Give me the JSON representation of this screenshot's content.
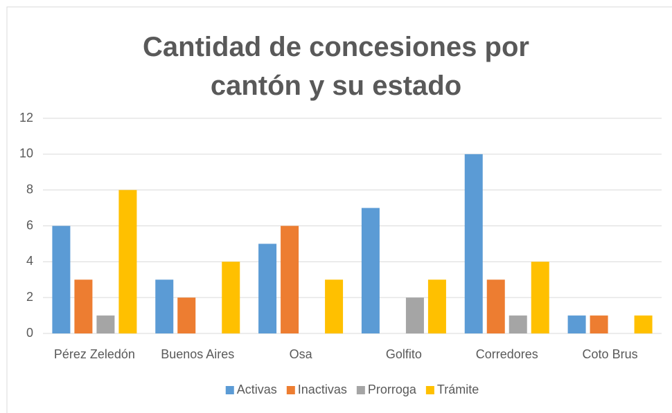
{
  "chart_data": {
    "type": "bar",
    "title": "Cantidad de concesiones por cantón y su estado",
    "categories": [
      "Pérez Zeledón",
      "Buenos Aires",
      "Osa",
      "Golfito",
      "Corredores",
      "Coto Brus"
    ],
    "series": [
      {
        "name": "Activas",
        "color": "#5b9bd5",
        "values": [
          6,
          3,
          5,
          7,
          10,
          1
        ]
      },
      {
        "name": "Inactivas",
        "color": "#ed7d31",
        "values": [
          3,
          2,
          6,
          0,
          3,
          1
        ]
      },
      {
        "name": "Prorroga",
        "color": "#a5a5a5",
        "values": [
          1,
          0,
          0,
          2,
          1,
          0
        ]
      },
      {
        "name": "Trámite",
        "color": "#ffc000",
        "values": [
          8,
          4,
          3,
          3,
          4,
          1
        ]
      }
    ],
    "ylim": [
      0,
      12
    ],
    "yticks": [
      0,
      2,
      4,
      6,
      8,
      10,
      12
    ],
    "grid": true,
    "legend": "bottom"
  }
}
